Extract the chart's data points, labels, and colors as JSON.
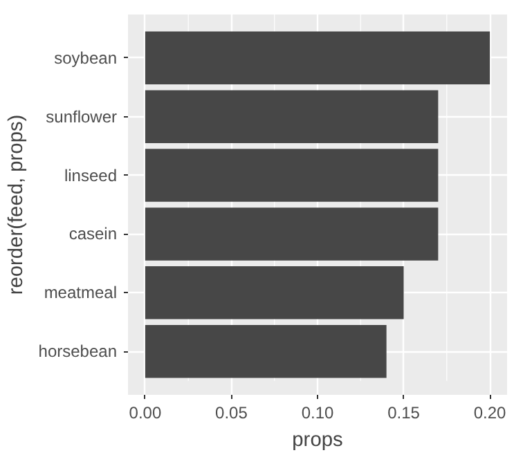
{
  "chart_data": {
    "type": "bar",
    "orientation": "horizontal",
    "xlabel": "props",
    "ylabel": "reorder(feed, props)",
    "categories": [
      "soybean",
      "sunflower",
      "linseed",
      "casein",
      "meatmeal",
      "horsebean"
    ],
    "values": [
      0.2,
      0.17,
      0.17,
      0.17,
      0.15,
      0.14
    ],
    "color": "#474747",
    "xlim": [
      -0.01,
      0.21
    ],
    "xticks": [
      {
        "value": 0,
        "label": "0.00"
      },
      {
        "value": 0.05,
        "label": "0.05"
      },
      {
        "value": 0.1,
        "label": "0.10"
      },
      {
        "value": 0.15,
        "label": "0.15"
      },
      {
        "value": 0.2,
        "label": "0.20"
      }
    ],
    "grid": true
  }
}
